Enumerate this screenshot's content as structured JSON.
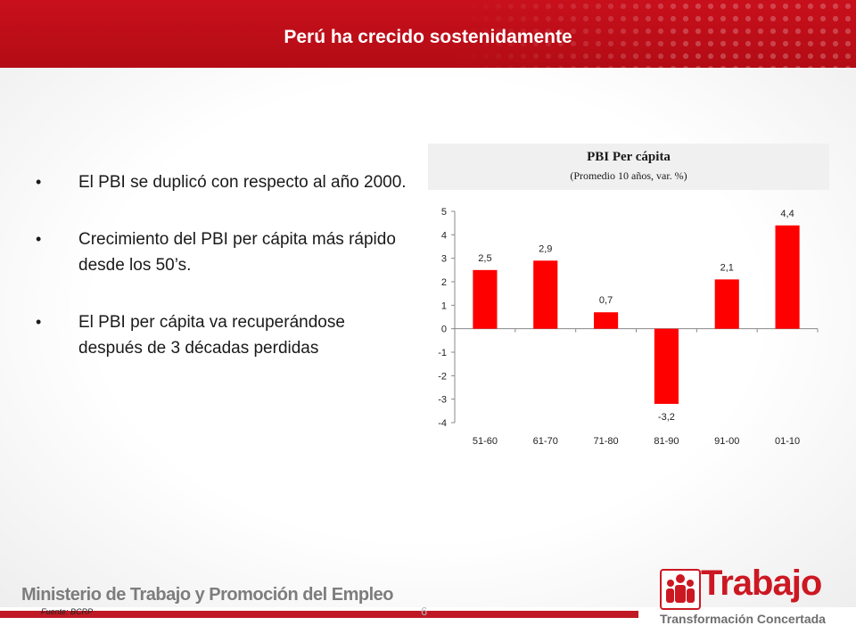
{
  "slide": {
    "title": "Perú ha crecido sostenidamente",
    "bullets": [
      "El PBI se duplicó con respecto al año 2000.",
      "Crecimiento del PBI per cápita más rápido desde los 50’s.",
      "El PBI per cápita va recuperándose después de 3 décadas perdidas"
    ],
    "footer": {
      "ministry": "Ministerio de Trabajo y Promoción del Empleo",
      "source": "Fuente: BCRP",
      "page_number": "6"
    },
    "logo": {
      "brand": "Trabajo",
      "tagline": "Transformación Concertada",
      "icon": "people-logo-icon"
    },
    "colors": {
      "accent": "#cc1822",
      "bar": "#ff0000",
      "header": "#c00d17"
    }
  },
  "chart_data": {
    "type": "bar",
    "title": "PBI Per cápita",
    "subtitle": "(Promedio 10 años, var. %)",
    "categories": [
      "51-60",
      "61-70",
      "71-80",
      "81-90",
      "91-00",
      "01-10"
    ],
    "values": [
      2.5,
      2.9,
      0.7,
      -3.2,
      2.1,
      4.4
    ],
    "value_labels": [
      "2,5",
      "2,9",
      "0,7",
      "-3,2",
      "2,1",
      "4,4"
    ],
    "ylim": [
      -4,
      5
    ],
    "yticks": [
      "-4",
      "-3",
      "-2",
      "-1",
      "0",
      "1",
      "2",
      "3",
      "4",
      "5"
    ],
    "xlabel": "",
    "ylabel": "",
    "grid": false,
    "legend": "none"
  }
}
